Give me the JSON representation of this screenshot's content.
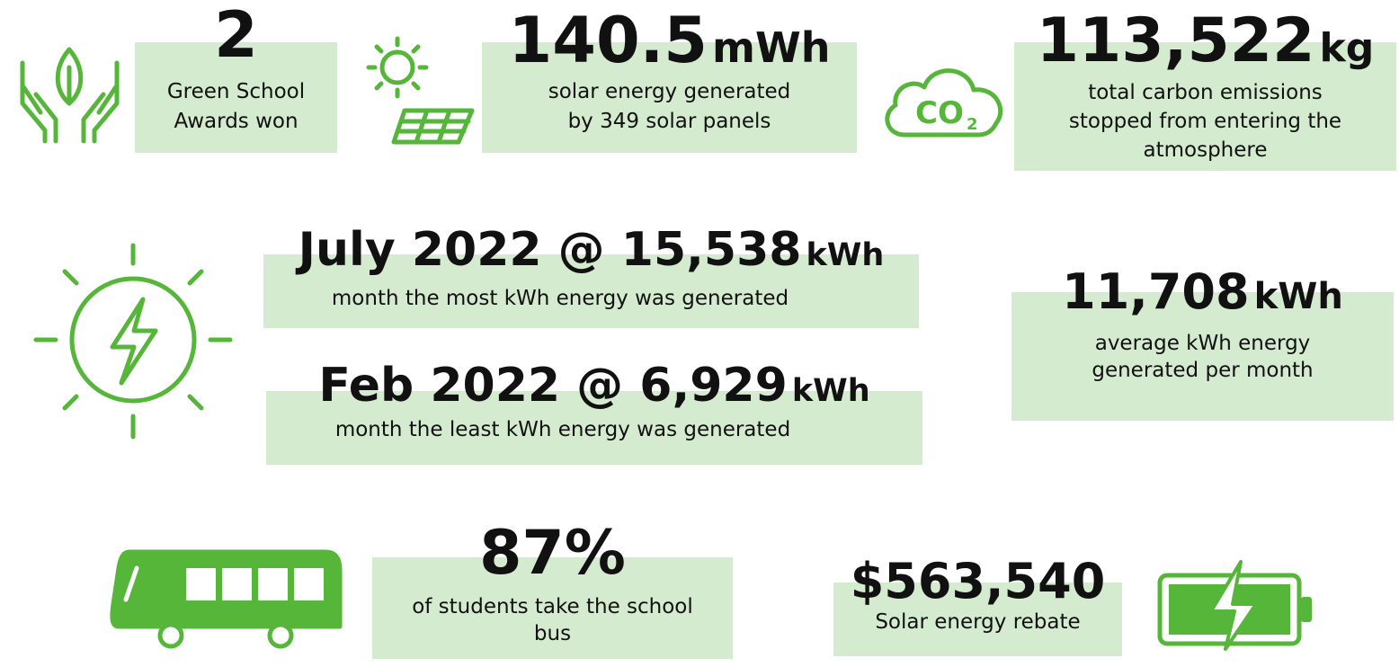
{
  "stats": [
    {
      "value": "2",
      "description": [
        "Green School",
        "Awards won"
      ]
    },
    {
      "value": "140.5",
      "unit": "mWh",
      "description": [
        "solar energy generated",
        "by 349 solar panels"
      ]
    },
    {
      "value": "113,522",
      "unit": "kg",
      "description": [
        "total carbon emissions",
        "stopped from entering the",
        "atmosphere"
      ]
    },
    {
      "value": "July 2022 @ 15,538",
      "unit": "kWh",
      "description": [
        "month the most kWh energy was generated"
      ]
    },
    {
      "value": "Feb 2022 @ 6,929",
      "unit": "kWh",
      "description": [
        "month the least kWh energy was generated"
      ]
    },
    {
      "value": "11,708",
      "unit": "kWh",
      "description": [
        "average kWh energy",
        "generated per month"
      ]
    },
    {
      "value": "87%",
      "description": [
        "of students take the school",
        "bus"
      ]
    },
    {
      "value": "$563,540",
      "description": [
        "Solar energy rebate"
      ]
    }
  ],
  "icon_text": {
    "co2": "CO",
    "sub": "2"
  }
}
